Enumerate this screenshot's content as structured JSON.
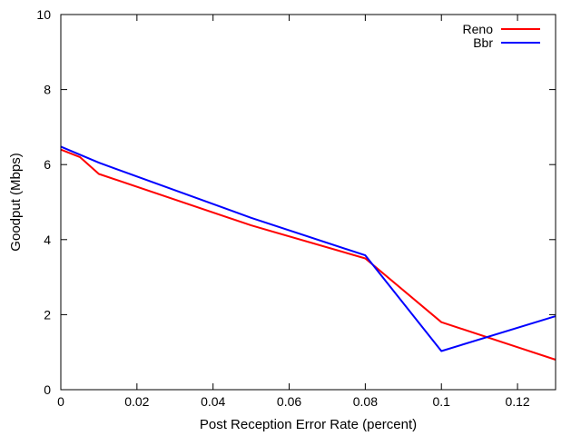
{
  "chart_data": {
    "type": "line",
    "xlabel": "Post Reception Error Rate (percent)",
    "ylabel": "Goodput (Mbps)",
    "xlim": [
      0,
      0.13
    ],
    "ylim": [
      0,
      10
    ],
    "xticks": [
      "0",
      "0.02",
      "0.04",
      "0.06",
      "0.08",
      "0.1",
      "0.12"
    ],
    "xtick_values": [
      0,
      0.02,
      0.04,
      0.06,
      0.08,
      0.1,
      0.12
    ],
    "yticks": [
      "0",
      "2",
      "4",
      "6",
      "8",
      "10"
    ],
    "ytick_values": [
      0,
      2,
      4,
      6,
      8,
      10
    ],
    "grid": false,
    "legend_position": "top-right",
    "series": [
      {
        "name": "Reno",
        "color": "#ff0000",
        "x": [
          0,
          0.005,
          0.01,
          0.05,
          0.08,
          0.1,
          0.13
        ],
        "y": [
          6.4,
          6.2,
          5.75,
          4.38,
          3.5,
          1.8,
          0.8
        ]
      },
      {
        "name": "Bbr",
        "color": "#0000ff",
        "x": [
          0,
          0.01,
          0.05,
          0.08,
          0.1,
          0.13
        ],
        "y": [
          6.48,
          6.05,
          4.58,
          3.58,
          1.03,
          1.96
        ]
      }
    ]
  }
}
